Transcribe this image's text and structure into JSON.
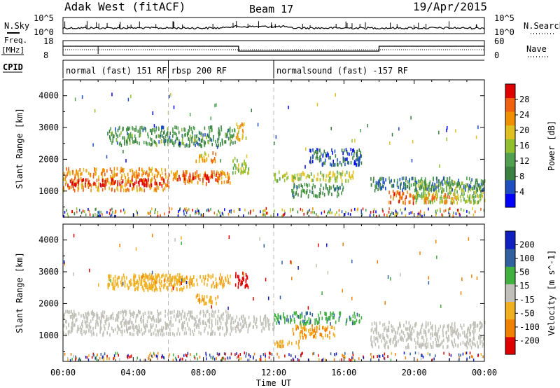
{
  "header": {
    "title": "Adak West (fitACF)",
    "beam": "Beam 17",
    "date": "19/Apr/2015"
  },
  "top_panels": {
    "nsky_label": "N.Sky",
    "nsky_ticks": [
      "10^5",
      "10^0"
    ],
    "nsearch_label": "N.Search",
    "nsearch_ticks": [
      "10^5",
      "10^0"
    ],
    "freq_label_1": "Freq.",
    "freq_label_2": "[MHz]",
    "freq_ticks": [
      "18",
      "8"
    ],
    "nave_label": "Nave",
    "nave_ticks": [
      "60",
      "0"
    ],
    "cpid_label": "CPID",
    "cpid_segments": [
      {
        "label": "normal (fast) 151 RF",
        "start_hour": 0,
        "end_hour": 6
      },
      {
        "label": "rbsp 200 RF",
        "start_hour": 6,
        "end_hour": 12
      },
      {
        "label": "normalsound (fast) -157 RF",
        "start_hour": 12,
        "end_hour": 24
      }
    ]
  },
  "colors": {
    "scale": [
      "#0000ff",
      "#2050c0",
      "#3a8040",
      "#50a050",
      "#90c030",
      "#e0c020",
      "#f09000",
      "#f06010",
      "#e00000"
    ],
    "ground_scatter": "#c0c0b8",
    "velocity_pos": [
      "#1020c0",
      "#3060a0",
      "#40b040"
    ],
    "velocity_neg": [
      "#f0b020",
      "#f08000",
      "#e00000"
    ]
  },
  "chart_data": [
    {
      "type": "heatmap",
      "title": "Power",
      "xlabel": "Time UT",
      "ylabel": "Slant Range [km]",
      "x_ticks": [
        "00:00",
        "04:00",
        "08:00",
        "12:00",
        "16:00",
        "20:00",
        "00:00"
      ],
      "xlim_hours": [
        0,
        24
      ],
      "y_ticks": [
        1000,
        2000,
        3000,
        4000
      ],
      "ylim": [
        180,
        4500
      ],
      "colorbar_label": "Power [dB]",
      "colorbar_ticks": [
        "28",
        "24",
        "20",
        "16",
        "12",
        "8",
        "4"
      ],
      "colorbar_range": [
        0,
        30
      ],
      "regions": [
        {
          "t0": 0,
          "t1": 6,
          "r0": 1000,
          "r1": 1700,
          "level": 22
        },
        {
          "t0": 0.2,
          "t1": 6,
          "r0": 1150,
          "r1": 1350,
          "level": 29
        },
        {
          "t0": 6,
          "t1": 9.5,
          "r0": 1200,
          "r1": 1600,
          "level": 22
        },
        {
          "t0": 6.5,
          "t1": 9,
          "r0": 1300,
          "r1": 1500,
          "level": 28
        },
        {
          "t0": 2.5,
          "t1": 9.8,
          "r0": 2400,
          "r1": 3000,
          "level": 10
        },
        {
          "t0": 7.5,
          "t1": 8.7,
          "r0": 1900,
          "r1": 2200,
          "level": 20
        },
        {
          "t0": 9.6,
          "t1": 10.6,
          "r0": 1500,
          "r1": 2000,
          "level": 16
        },
        {
          "t0": 9.8,
          "t1": 10.4,
          "r0": 2600,
          "r1": 3100,
          "level": 20
        },
        {
          "t0": 12,
          "t1": 16.5,
          "r0": 1300,
          "r1": 1600,
          "level": 16
        },
        {
          "t0": 13,
          "t1": 16,
          "r0": 800,
          "r1": 1200,
          "level": 10
        },
        {
          "t0": 18.5,
          "t1": 20,
          "r0": 600,
          "r1": 1000,
          "level": 24
        },
        {
          "t0": 20,
          "t1": 24,
          "r0": 600,
          "r1": 1300,
          "level": 14
        },
        {
          "t0": 20.5,
          "t1": 22.5,
          "r0": 600,
          "r1": 900,
          "level": 22
        },
        {
          "t0": 17.5,
          "t1": 24,
          "r0": 1000,
          "r1": 1400,
          "level": 8
        },
        {
          "t0": 14,
          "t1": 17,
          "r0": 1800,
          "r1": 2300,
          "level": 6
        }
      ]
    },
    {
      "type": "heatmap",
      "title": "Velocity",
      "xlabel": "Time UT",
      "ylabel": "Slant Range [km]",
      "x_ticks": [
        "00:00",
        "04:00",
        "08:00",
        "12:00",
        "16:00",
        "20:00",
        "00:00"
      ],
      "xlim_hours": [
        0,
        24
      ],
      "y_ticks": [
        1000,
        2000,
        3000,
        4000
      ],
      "ylim": [
        180,
        4500
      ],
      "colorbar_label": "Velocity [m s^-1]",
      "colorbar_ticks": [
        "200",
        "100",
        "50",
        "15",
        "-15",
        "-50",
        "-100",
        "-200"
      ],
      "colorbar_range": [
        -250,
        250
      ],
      "regions": [
        {
          "t0": 0,
          "t1": 9.5,
          "r0": 1000,
          "r1": 1750,
          "value": 0
        },
        {
          "t0": 9.5,
          "t1": 12,
          "r0": 1100,
          "r1": 1600,
          "value": 0
        },
        {
          "t0": 2.5,
          "t1": 7,
          "r0": 2400,
          "r1": 2900,
          "value": -30
        },
        {
          "t0": 4,
          "t1": 9.5,
          "r0": 2500,
          "r1": 2900,
          "value": -40
        },
        {
          "t0": 7.5,
          "t1": 8.8,
          "r0": 1950,
          "r1": 2250,
          "value": -40
        },
        {
          "t0": 9.8,
          "t1": 10.6,
          "r0": 2500,
          "r1": 3000,
          "value": -220
        },
        {
          "t0": 12,
          "t1": 17,
          "r0": 1350,
          "r1": 1700,
          "value": 40
        },
        {
          "t0": 13,
          "t1": 15.5,
          "r0": 900,
          "r1": 1300,
          "value": -50
        },
        {
          "t0": 12,
          "t1": 13.5,
          "r0": 600,
          "r1": 800,
          "value": -40
        },
        {
          "t0": 17.5,
          "t1": 24,
          "r0": 600,
          "r1": 1400,
          "value": 0
        }
      ]
    }
  ]
}
